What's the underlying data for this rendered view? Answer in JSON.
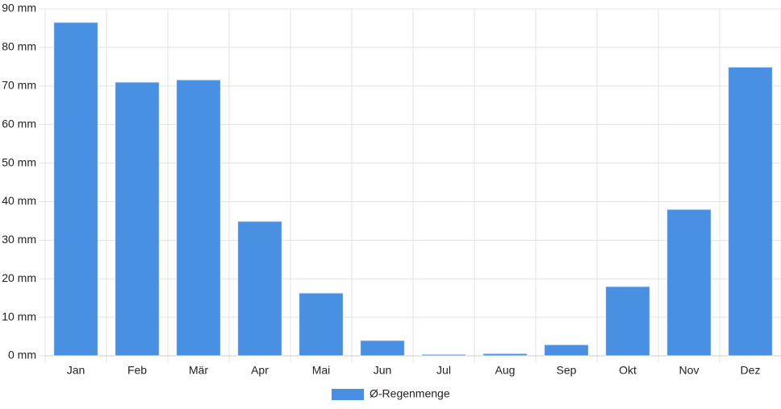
{
  "chart_data": {
    "type": "bar",
    "categories": [
      "Jan",
      "Feb",
      "Mär",
      "Apr",
      "Mai",
      "Jun",
      "Jul",
      "Aug",
      "Sep",
      "Okt",
      "Nov",
      "Dez"
    ],
    "series": [
      {
        "name": "Ø-Regenmenge",
        "color": "#4a90e2",
        "values": [
          86.5,
          71.0,
          71.6,
          34.9,
          16.3,
          4.0,
          0.4,
          0.6,
          2.9,
          18.0,
          38.0,
          74.9
        ]
      }
    ],
    "ylim": [
      0,
      90
    ],
    "yticks": [
      {
        "value": 0,
        "label": "0 mm"
      },
      {
        "value": 10,
        "label": "10 mm"
      },
      {
        "value": 20,
        "label": "20 mm"
      },
      {
        "value": 30,
        "label": "30 mm"
      },
      {
        "value": 40,
        "label": "40 mm"
      },
      {
        "value": 50,
        "label": "50 mm"
      },
      {
        "value": 60,
        "label": "60 mm"
      },
      {
        "value": 70,
        "label": "70 mm"
      },
      {
        "value": 80,
        "label": "80 mm"
      },
      {
        "value": 90,
        "label": "90 mm"
      }
    ],
    "grid": true,
    "legend": "bottom"
  }
}
